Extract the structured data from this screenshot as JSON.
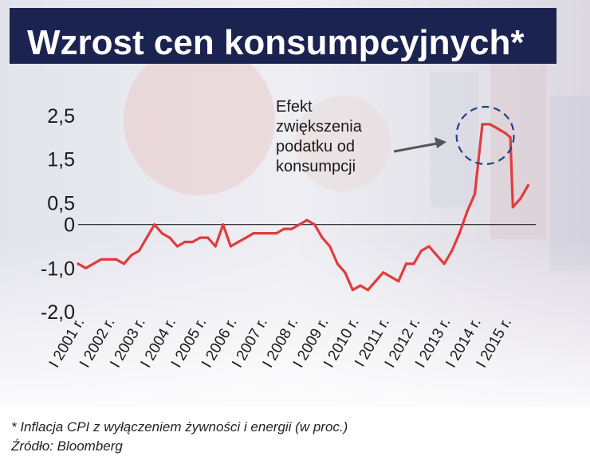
{
  "title": "Wzrost cen konsumpcyjnych*",
  "footnote": "* Inflacja CPI z wyłączeniem żywności i energii (w proc.)",
  "source": "Źródło: Bloomberg",
  "colors": {
    "line": "#e03c3c",
    "title_bg": "#1b2350",
    "annotation": "#1f3f8a"
  },
  "chart_data": {
    "type": "line",
    "title": "Wzrost cen konsumpcyjnych*",
    "xlabel": "",
    "ylabel": "",
    "ylim": [
      -2.0,
      2.5
    ],
    "y_ticks": [
      {
        "value": 2.5,
        "label": "2,5"
      },
      {
        "value": 1.5,
        "label": "1,5"
      },
      {
        "value": 0.5,
        "label": "0,5"
      },
      {
        "value": 0,
        "label": "0"
      },
      {
        "value": -1.0,
        "label": "-1,0"
      },
      {
        "value": -2.0,
        "label": "-2,0"
      }
    ],
    "x_ticks": [
      "I 2001 r.",
      "I 2002 r.",
      "I 2003 r.",
      "I 2004 r.",
      "I 2005 r.",
      "I 2006 r.",
      "I 2007 r.",
      "I 2008 r.",
      "I 2009 r.",
      "I 2010 r.",
      "I 2011 r.",
      "I 2012 r.",
      "I 2013 r.",
      "I 2014 r.",
      "I 2015 r."
    ],
    "grid": false,
    "zero_line": true,
    "series": [
      {
        "x": [
          "2001-01",
          "2001-04",
          "2001-07",
          "2001-10",
          "2002-01",
          "2002-04",
          "2002-07",
          "2002-10",
          "2003-01",
          "2003-04",
          "2003-07",
          "2003-10",
          "2004-01",
          "2004-04",
          "2004-07",
          "2004-10",
          "2005-01",
          "2005-04",
          "2005-07",
          "2005-10",
          "2006-01",
          "2006-04",
          "2006-07",
          "2006-10",
          "2007-01",
          "2007-04",
          "2007-07",
          "2007-10",
          "2008-01",
          "2008-04",
          "2008-07",
          "2008-10",
          "2009-01",
          "2009-04",
          "2009-07",
          "2009-10",
          "2010-01",
          "2010-04",
          "2010-07",
          "2010-10",
          "2011-01",
          "2011-04",
          "2011-07",
          "2011-10",
          "2012-01",
          "2012-04",
          "2012-07",
          "2012-10",
          "2013-01",
          "2013-04",
          "2013-07",
          "2013-10",
          "2014-01",
          "2014-04",
          "2014-07",
          "2014-10",
          "2015-01",
          "2015-03",
          "2015-04",
          "2015-07",
          "2015-10"
        ],
        "values": [
          -0.9,
          -1.0,
          -0.9,
          -0.8,
          -0.8,
          -0.8,
          -0.9,
          -0.7,
          -0.6,
          -0.3,
          0.0,
          -0.2,
          -0.3,
          -0.5,
          -0.4,
          -0.4,
          -0.3,
          -0.3,
          -0.5,
          0.0,
          -0.5,
          -0.4,
          -0.3,
          -0.2,
          -0.2,
          -0.2,
          -0.2,
          -0.1,
          -0.1,
          0.0,
          0.1,
          0.0,
          -0.3,
          -0.5,
          -0.9,
          -1.1,
          -1.5,
          -1.4,
          -1.5,
          -1.3,
          -1.1,
          -1.2,
          -1.3,
          -0.9,
          -0.9,
          -0.6,
          -0.5,
          -0.7,
          -0.9,
          -0.6,
          -0.2,
          0.3,
          0.7,
          2.3,
          2.3,
          2.2,
          2.1,
          2.0,
          0.4,
          0.6,
          0.9
        ]
      }
    ],
    "annotations": [
      {
        "text": [
          "Efekt",
          "zwiększenia",
          "podatku od",
          "konsumpcji"
        ],
        "x": "2014-07",
        "y": 2.3
      }
    ]
  }
}
